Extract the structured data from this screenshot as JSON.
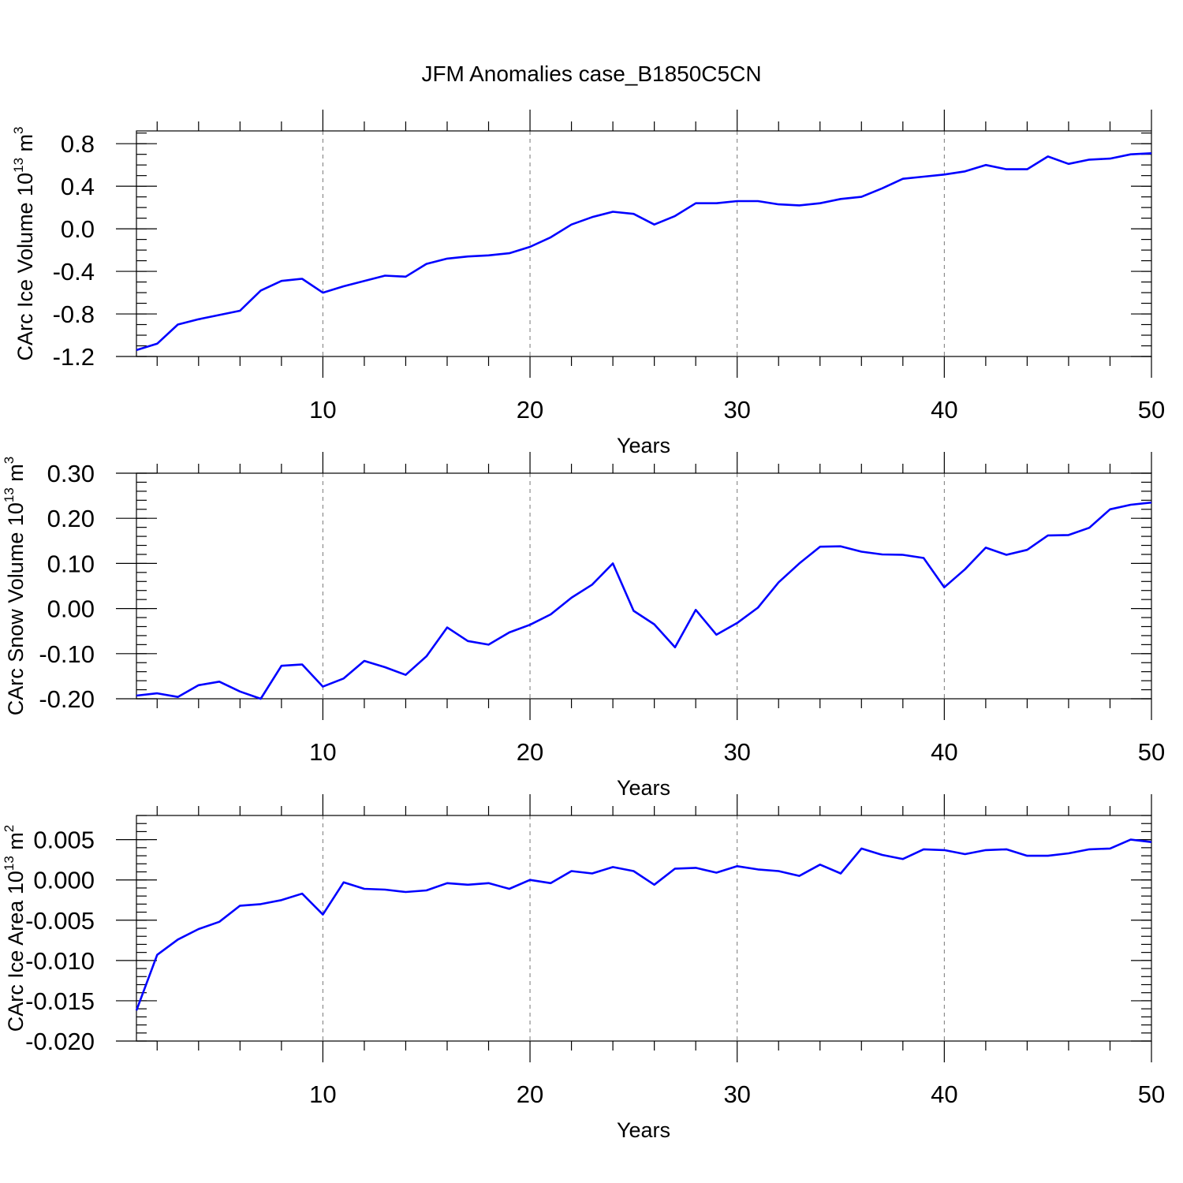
{
  "chart_data": {
    "title": "JFM Anomalies case_B1850C5CN",
    "panels": [
      {
        "type": "line",
        "ylabel": "CArc Ice Volume 10",
        "ylabel_sup": "13",
        "ylabel_unit": " m",
        "ylabel_unit_sup": "3",
        "xlabel": "Years",
        "xlim": [
          1,
          50
        ],
        "ylim": [
          -1.2,
          0.92
        ],
        "x_ticks": [
          10,
          20,
          30,
          40,
          50
        ],
        "y_ticks": [
          -1.2,
          -0.8,
          -0.4,
          0.0,
          0.4,
          0.8
        ],
        "y_tick_labels": [
          "-1.2",
          "-0.8",
          "-0.4",
          "0.0",
          "0.4",
          "0.8"
        ],
        "y_minor_step": 0.1,
        "grid": "vertical dashed at major x ticks",
        "series": [
          {
            "color": "#0000ff",
            "x": [
              1,
              2,
              3,
              4,
              5,
              6,
              7,
              8,
              9,
              10,
              11,
              12,
              13,
              14,
              15,
              16,
              17,
              18,
              19,
              20,
              21,
              22,
              23,
              24,
              25,
              26,
              27,
              28,
              29,
              30,
              31,
              32,
              33,
              34,
              35,
              36,
              37,
              38,
              39,
              40,
              41,
              42,
              43,
              44,
              45,
              46,
              47,
              48,
              49,
              50
            ],
            "y": [
              -1.14,
              -1.08,
              -0.9,
              -0.85,
              -0.81,
              -0.77,
              -0.58,
              -0.49,
              -0.47,
              -0.6,
              -0.54,
              -0.49,
              -0.44,
              -0.45,
              -0.33,
              -0.28,
              -0.26,
              -0.25,
              -0.23,
              -0.17,
              -0.08,
              0.04,
              0.11,
              0.16,
              0.14,
              0.04,
              0.12,
              0.24,
              0.24,
              0.26,
              0.26,
              0.23,
              0.22,
              0.24,
              0.28,
              0.3,
              0.38,
              0.47,
              0.49,
              0.51,
              0.54,
              0.6,
              0.56,
              0.56,
              0.68,
              0.61,
              0.65,
              0.66,
              0.7,
              0.71
            ]
          }
        ]
      },
      {
        "type": "line",
        "ylabel": "CArc Snow Volume 10",
        "ylabel_sup": "13",
        "ylabel_unit": " m",
        "ylabel_unit_sup": "3",
        "xlabel": "Years",
        "xlim": [
          1,
          50
        ],
        "ylim": [
          -0.2,
          0.3
        ],
        "x_ticks": [
          10,
          20,
          30,
          40,
          50
        ],
        "y_ticks": [
          -0.2,
          -0.1,
          0.0,
          0.1,
          0.2,
          0.3
        ],
        "y_tick_labels": [
          "-0.20",
          "-0.10",
          "0.00",
          "0.10",
          "0.20",
          "0.30"
        ],
        "y_minor_step": 0.02,
        "grid": "vertical dashed at major x ticks",
        "series": [
          {
            "color": "#0000ff",
            "x": [
              1,
              2,
              3,
              4,
              5,
              6,
              7,
              8,
              9,
              10,
              11,
              12,
              13,
              14,
              15,
              16,
              17,
              18,
              19,
              20,
              21,
              22,
              23,
              24,
              25,
              26,
              27,
              28,
              29,
              30,
              31,
              32,
              33,
              34,
              35,
              36,
              37,
              38,
              39,
              40,
              41,
              42,
              43,
              44,
              45,
              46,
              47,
              48,
              49,
              50
            ],
            "y": [
              -0.193,
              -0.188,
              -0.196,
              -0.17,
              -0.162,
              -0.184,
              -0.2,
              -0.127,
              -0.124,
              -0.173,
              -0.155,
              -0.116,
              -0.13,
              -0.147,
              -0.106,
              -0.042,
              -0.072,
              -0.08,
              -0.053,
              -0.036,
              -0.013,
              0.024,
              0.053,
              0.1,
              -0.005,
              -0.035,
              -0.086,
              -0.003,
              -0.058,
              -0.032,
              0.002,
              0.058,
              0.1,
              0.137,
              0.138,
              0.126,
              0.12,
              0.119,
              0.112,
              0.047,
              0.087,
              0.135,
              0.119,
              0.13,
              0.162,
              0.163,
              0.179,
              0.22,
              0.23,
              0.235
            ]
          }
        ]
      },
      {
        "type": "line",
        "ylabel": "CArc Ice Area 10",
        "ylabel_sup": "13",
        "ylabel_unit": " m",
        "ylabel_unit_sup": "2",
        "xlabel": "Years",
        "xlim": [
          1,
          50
        ],
        "ylim": [
          -0.02,
          0.008
        ],
        "x_ticks": [
          10,
          20,
          30,
          40,
          50
        ],
        "y_ticks": [
          -0.02,
          -0.015,
          -0.01,
          -0.005,
          0.0,
          0.005
        ],
        "y_tick_labels": [
          "-0.020",
          "-0.015",
          "-0.010",
          "-0.005",
          "0.000",
          "0.005"
        ],
        "y_minor_step": 0.001,
        "grid": "vertical dashed at major x ticks",
        "series": [
          {
            "color": "#0000ff",
            "x": [
              1,
              2,
              3,
              4,
              5,
              6,
              7,
              8,
              9,
              10,
              11,
              12,
              13,
              14,
              15,
              16,
              17,
              18,
              19,
              20,
              21,
              22,
              23,
              24,
              25,
              26,
              27,
              28,
              29,
              30,
              31,
              32,
              33,
              34,
              35,
              36,
              37,
              38,
              39,
              40,
              41,
              42,
              43,
              44,
              45,
              46,
              47,
              48,
              49,
              50
            ],
            "y": [
              -0.0162,
              -0.0093,
              -0.0074,
              -0.0061,
              -0.0052,
              -0.0032,
              -0.003,
              -0.0025,
              -0.0017,
              -0.0043,
              -0.0003,
              -0.0011,
              -0.0012,
              -0.0015,
              -0.0013,
              -0.0004,
              -0.0006,
              -0.0004,
              -0.0011,
              0.0,
              -0.0004,
              0.0011,
              0.0008,
              0.0016,
              0.0011,
              -0.0006,
              0.0014,
              0.0015,
              0.0009,
              0.0017,
              0.0013,
              0.0011,
              0.0005,
              0.0019,
              0.0008,
              0.0039,
              0.0031,
              0.0026,
              0.0038,
              0.0037,
              0.0032,
              0.0037,
              0.0038,
              0.003,
              0.003,
              0.0033,
              0.0038,
              0.0039,
              0.005,
              0.0047
            ]
          }
        ]
      }
    ]
  }
}
